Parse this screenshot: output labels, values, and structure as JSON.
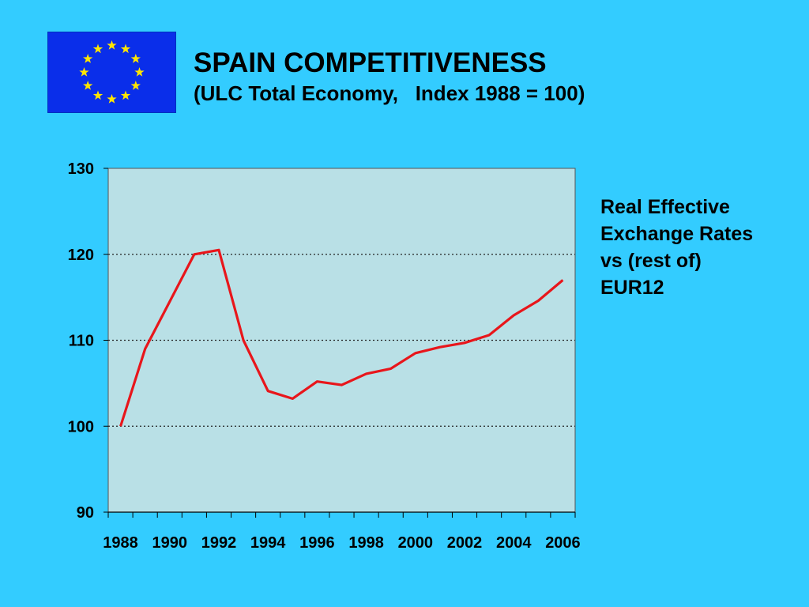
{
  "slide": {
    "background_color": "#33CCFF",
    "title": "SPAIN COMPETITIVENESS",
    "subtitle": "(ULC Total Economy,   Index 1988 = 100)",
    "logo": {
      "icon": "eu-flag-icon",
      "flag_color": "#0A2EEA",
      "star_color": "#FFE500"
    },
    "side_note_lines": [
      "Real Effective",
      "Exchange Rates",
      "vs (rest of)",
      "EUR12"
    ]
  },
  "chart_data": {
    "type": "line",
    "title": "",
    "xlabel": "",
    "ylabel": "",
    "ylim": [
      90,
      130
    ],
    "y_ticks": [
      "90",
      "100",
      "110",
      "120",
      "130"
    ],
    "x_ticks": [
      "1988",
      "1990",
      "1992",
      "1994",
      "1996",
      "1998",
      "2000",
      "2002",
      "2004",
      "2006"
    ],
    "x_range": [
      1988,
      2007
    ],
    "grid": "horizontal dotted",
    "plot_background": "#B9E0E6",
    "series": [
      {
        "color": "#E8161B",
        "x": [
          1988.5,
          1989.5,
          1990.5,
          1991.5,
          1992.5,
          1993.5,
          1994.5,
          1995.5,
          1996.5,
          1997.5,
          1998.5,
          1999.5,
          2000.5,
          2001.5,
          2002.5,
          2003.5,
          2004.5,
          2005.5,
          2006.5
        ],
        "y": [
          100,
          109,
          114.5,
          120,
          120.5,
          110,
          104.1,
          103.2,
          105.2,
          104.8,
          106.1,
          106.7,
          108.5,
          109.2,
          109.7,
          110.6,
          112.9,
          114.6,
          117
        ]
      }
    ]
  }
}
